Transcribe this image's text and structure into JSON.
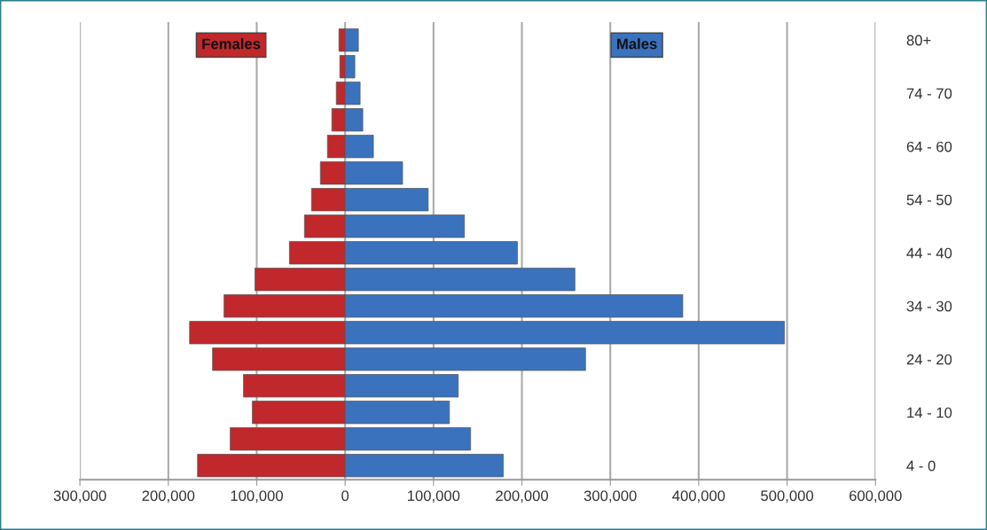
{
  "chart_data": {
    "type": "bar",
    "orientation": "horizontal",
    "stacked": true,
    "categories": [
      "80+",
      null,
      "74 - 70",
      null,
      "64 - 60",
      null,
      "54 - 50",
      null,
      "44 - 40",
      null,
      "34 - 30",
      null,
      "24 - 20",
      null,
      "14 - 10",
      null,
      "4 - 0"
    ],
    "series": [
      {
        "name": "Females",
        "color": "#c0282b",
        "values": [
          -7000,
          -6000,
          -10000,
          -15000,
          -20000,
          -28000,
          -38000,
          -46000,
          -63000,
          -102000,
          -137000,
          -176000,
          -150000,
          -115000,
          -105000,
          -130000,
          -167000
        ]
      },
      {
        "name": "Males",
        "color": "#3a72bd",
        "values": [
          15000,
          11000,
          17000,
          20000,
          32000,
          65000,
          94000,
          135000,
          195000,
          260000,
          382000,
          497000,
          272000,
          128000,
          118000,
          142000,
          179000
        ]
      }
    ],
    "xlim": [
      -300000,
      600000
    ],
    "xticks": [
      {
        "value": -300000,
        "label": "300,000"
      },
      {
        "value": -200000,
        "label": "200,000"
      },
      {
        "value": -100000,
        "label": "100,000"
      },
      0,
      {
        "value": 100000,
        "label": "100,000"
      },
      {
        "value": 200000,
        "label": "200,000"
      },
      {
        "value": 300000,
        "label": "300,000"
      },
      {
        "value": 400000,
        "label": "400,000"
      },
      {
        "value": 500000,
        "label": "500,000"
      },
      {
        "value": 600000,
        "label": "600,000"
      }
    ],
    "grid": "x"
  }
}
